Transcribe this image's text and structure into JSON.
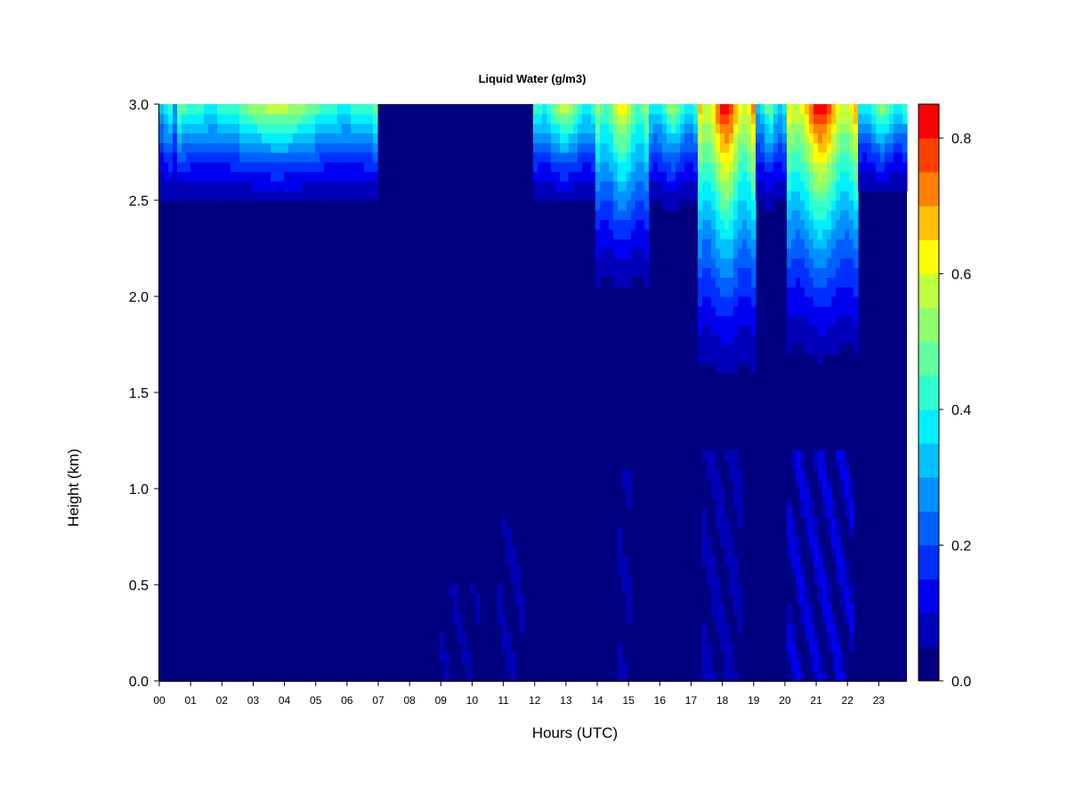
{
  "chart_data": {
    "type": "heatmap",
    "title": "Liquid Water (g/m3)",
    "xlabel": "Hours (UTC)",
    "ylabel": "Height (km)",
    "xlim": [
      0,
      23.9
    ],
    "ylim": [
      0,
      3.0
    ],
    "x_ticks": [
      0,
      1,
      2,
      3,
      4,
      5,
      6,
      7,
      8,
      9,
      10,
      11,
      12,
      13,
      14,
      15,
      16,
      17,
      18,
      19,
      20,
      21,
      22,
      23
    ],
    "x_tick_labels": [
      "00",
      "01",
      "02",
      "03",
      "04",
      "05",
      "06",
      "07",
      "08",
      "09",
      "10",
      "11",
      "12",
      "13",
      "14",
      "15",
      "16",
      "17",
      "18",
      "19",
      "20",
      "21",
      "22",
      "23"
    ],
    "y_ticks": [
      0.0,
      0.5,
      1.0,
      1.5,
      2.0,
      2.5,
      3.0
    ],
    "y_tick_labels": [
      "0.0",
      "0.5",
      "1.0",
      "1.5",
      "2.0",
      "2.5",
      "3.0"
    ],
    "colorbar": {
      "min": 0.0,
      "max": 0.85,
      "levels": [
        0.0,
        0.05,
        0.1,
        0.15,
        0.2,
        0.25,
        0.3,
        0.35,
        0.4,
        0.45,
        0.5,
        0.55,
        0.6,
        0.65,
        0.7,
        0.75,
        0.8,
        0.85
      ],
      "colors": [
        "#000080",
        "#0000b8",
        "#0000f0",
        "#0030ff",
        "#0060ff",
        "#0090ff",
        "#00c0ff",
        "#00f0ff",
        "#30ffcf",
        "#60ff9f",
        "#90ff6f",
        "#c0ff3f",
        "#ffff00",
        "#ffc000",
        "#ff8000",
        "#ff4000",
        "#ff0000",
        "#c00000",
        "#800000"
      ],
      "tick_values": [
        0.0,
        0.2,
        0.4,
        0.6,
        0.8
      ],
      "tick_labels": [
        "0.0",
        "0.2",
        "0.4",
        "0.6",
        "0.8"
      ]
    },
    "cloud_events": [
      {
        "start": 0.0,
        "end": 0.6,
        "base_km": 2.3,
        "peak": 0.45
      },
      {
        "start": 0.6,
        "end": 7.0,
        "base_km": 2.35,
        "peak": 0.6
      },
      {
        "start": 11.9,
        "end": 14.0,
        "base_km": 2.35,
        "peak": 0.6
      },
      {
        "start": 14.0,
        "end": 15.6,
        "base_km": 1.8,
        "peak": 0.65
      },
      {
        "start": 15.6,
        "end": 17.2,
        "base_km": 2.3,
        "peak": 0.55
      },
      {
        "start": 17.2,
        "end": 19.0,
        "base_km": 1.3,
        "peak": 0.85
      },
      {
        "start": 19.0,
        "end": 20.0,
        "base_km": 2.3,
        "peak": 0.5
      },
      {
        "start": 20.0,
        "end": 22.3,
        "base_km": 1.4,
        "peak": 0.85
      },
      {
        "start": 22.3,
        "end": 23.9,
        "base_km": 2.4,
        "peak": 0.55
      }
    ],
    "low_level_events": [
      {
        "start": 9.0,
        "end": 10.3,
        "top_km": 0.5,
        "value": 0.06
      },
      {
        "start": 10.8,
        "end": 11.6,
        "top_km": 0.85,
        "value": 0.07
      },
      {
        "start": 14.7,
        "end": 15.1,
        "top_km": 1.1,
        "value": 0.08
      },
      {
        "start": 17.3,
        "end": 18.7,
        "top_km": 1.2,
        "value": 0.1
      },
      {
        "start": 20.0,
        "end": 22.2,
        "top_km": 1.2,
        "value": 0.12
      }
    ]
  }
}
